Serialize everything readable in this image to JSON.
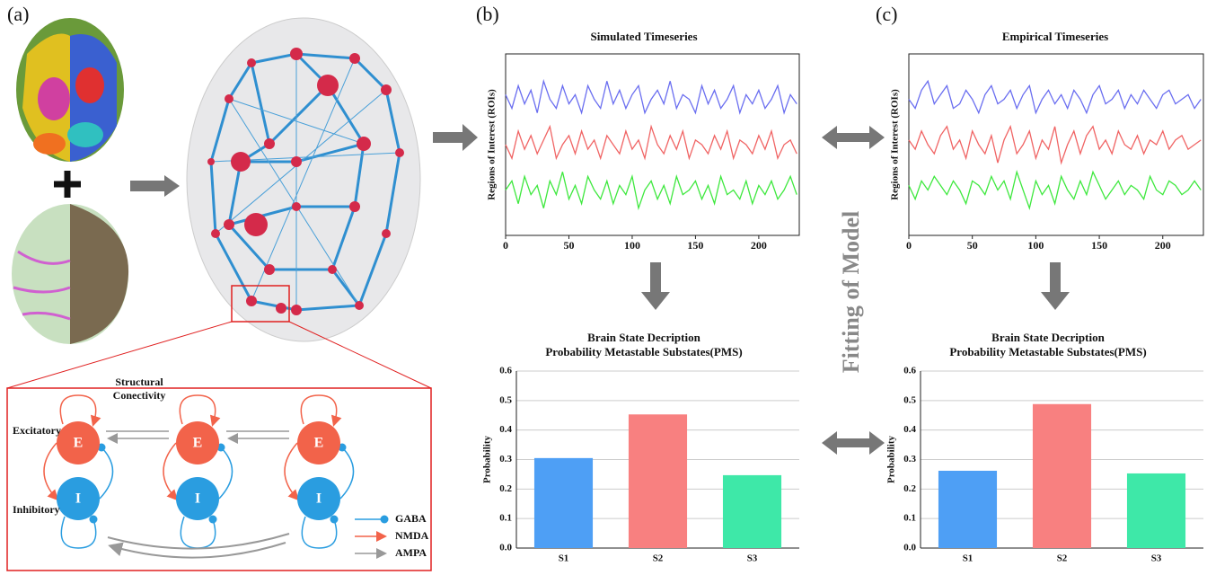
{
  "panel_labels": [
    "(a)",
    "(b)",
    "(c)"
  ],
  "fitting_label": "Fitting of Model",
  "diagram": {
    "structural_label": [
      "Structural",
      "Conectivity"
    ],
    "excitatory": "Excitatory",
    "inhibitory": "Inhibitory",
    "nodes": [
      "E",
      "I",
      "E",
      "I",
      "E",
      "I"
    ],
    "legend": [
      "GABA",
      "NMDA",
      "AMPA"
    ]
  },
  "chart_data": [
    {
      "type": "line",
      "title": "Simulated Timeseries",
      "y_label": "Regions of Interest (ROIs)",
      "x": [
        0,
        5,
        10,
        15,
        20,
        25,
        30,
        35,
        40,
        45,
        50,
        55,
        60,
        65,
        70,
        75,
        80,
        85,
        90,
        95,
        100,
        105,
        110,
        115,
        120,
        125,
        130,
        135,
        140,
        145,
        150,
        155,
        160,
        165,
        170,
        175,
        180,
        185,
        190,
        195,
        200,
        205,
        210,
        215,
        220,
        225,
        230
      ],
      "xlim": [
        0,
        232
      ],
      "xticks": [
        0,
        50,
        100,
        150,
        200
      ],
      "ylim": [
        0,
        4
      ],
      "series": [
        {
          "color": "#6a6ef0",
          "values": [
            3.1,
            2.8,
            3.3,
            2.9,
            3.2,
            2.7,
            3.4,
            3.0,
            2.8,
            3.3,
            2.9,
            3.1,
            2.7,
            3.3,
            3.0,
            2.8,
            3.4,
            2.9,
            3.2,
            2.8,
            3.1,
            3.3,
            2.7,
            3.0,
            3.2,
            2.9,
            3.4,
            2.8,
            3.1,
            3.0,
            2.7,
            3.3,
            2.9,
            3.2,
            2.8,
            3.0,
            3.3,
            2.7,
            3.1,
            2.9,
            3.2,
            2.8,
            3.0,
            3.3,
            2.7,
            3.1,
            2.9
          ]
        },
        {
          "color": "#f06464",
          "values": [
            2.0,
            1.7,
            2.3,
            1.9,
            2.2,
            1.8,
            2.1,
            2.4,
            1.7,
            2.0,
            2.2,
            1.8,
            2.3,
            1.9,
            2.1,
            1.7,
            2.2,
            2.0,
            1.8,
            2.3,
            1.9,
            2.1,
            1.7,
            2.4,
            2.0,
            1.8,
            2.2,
            1.9,
            2.3,
            1.7,
            2.1,
            2.0,
            1.8,
            2.2,
            1.9,
            2.3,
            1.7,
            2.1,
            2.0,
            1.8,
            2.2,
            1.9,
            2.3,
            1.7,
            2.0,
            2.1,
            1.8
          ]
        },
        {
          "color": "#3ee83e",
          "values": [
            1.0,
            1.2,
            0.7,
            1.3,
            0.9,
            1.1,
            0.6,
            1.2,
            0.9,
            1.4,
            0.8,
            1.1,
            0.7,
            1.3,
            1.0,
            0.8,
            1.2,
            0.7,
            1.1,
            0.9,
            1.3,
            0.6,
            1.0,
            1.2,
            0.8,
            1.1,
            0.7,
            1.3,
            0.9,
            1.0,
            1.2,
            0.8,
            1.1,
            0.7,
            1.3,
            0.9,
            1.0,
            0.8,
            1.2,
            0.7,
            1.1,
            0.9,
            1.2,
            0.8,
            1.0,
            1.3,
            0.9
          ]
        }
      ]
    },
    {
      "type": "line",
      "title": "Empirical Timeseries",
      "y_label": "Regions of Interest (ROIs)",
      "x": [
        0,
        5,
        10,
        15,
        20,
        25,
        30,
        35,
        40,
        45,
        50,
        55,
        60,
        65,
        70,
        75,
        80,
        85,
        90,
        95,
        100,
        105,
        110,
        115,
        120,
        125,
        130,
        135,
        140,
        145,
        150,
        155,
        160,
        165,
        170,
        175,
        180,
        185,
        190,
        195,
        200,
        205,
        210,
        215,
        220,
        225,
        230
      ],
      "xlim": [
        0,
        232
      ],
      "xticks": [
        0,
        50,
        100,
        150,
        200
      ],
      "ylim": [
        0,
        4
      ],
      "series": [
        {
          "color": "#6a6ef0",
          "values": [
            3.0,
            2.8,
            3.2,
            3.4,
            2.9,
            3.1,
            3.3,
            2.8,
            2.9,
            3.2,
            3.0,
            2.7,
            3.1,
            3.3,
            2.9,
            3.0,
            3.2,
            2.8,
            3.1,
            3.3,
            2.7,
            3.0,
            3.2,
            2.9,
            3.1,
            2.8,
            3.2,
            3.0,
            2.7,
            3.1,
            3.3,
            2.9,
            3.0,
            3.2,
            2.8,
            3.1,
            2.9,
            3.2,
            3.0,
            2.8,
            3.1,
            3.2,
            2.9,
            3.0,
            3.1,
            2.8,
            3.0
          ]
        },
        {
          "color": "#f06464",
          "values": [
            2.1,
            1.9,
            2.3,
            2.0,
            1.8,
            2.2,
            2.4,
            1.9,
            2.1,
            1.7,
            2.3,
            2.0,
            1.8,
            2.2,
            1.6,
            2.1,
            2.4,
            1.8,
            2.0,
            2.3,
            1.7,
            2.1,
            1.9,
            2.4,
            1.6,
            2.0,
            2.3,
            1.8,
            2.2,
            2.4,
            1.9,
            2.1,
            1.8,
            2.3,
            2.0,
            1.9,
            2.2,
            1.8,
            2.1,
            2.0,
            2.3,
            1.9,
            2.1,
            2.2,
            1.9,
            2.0,
            2.1
          ]
        },
        {
          "color": "#3ee83e",
          "values": [
            1.1,
            0.8,
            1.2,
            1.0,
            1.3,
            1.1,
            0.9,
            1.2,
            1.0,
            0.7,
            1.2,
            1.1,
            0.9,
            1.3,
            1.0,
            1.2,
            0.8,
            1.4,
            1.0,
            0.6,
            1.2,
            0.9,
            1.1,
            0.7,
            1.3,
            1.0,
            0.8,
            1.2,
            0.9,
            1.4,
            1.1,
            0.8,
            1.0,
            1.2,
            0.9,
            1.1,
            1.0,
            0.8,
            1.3,
            1.0,
            0.9,
            1.2,
            1.1,
            0.9,
            1.0,
            1.2,
            1.0
          ]
        }
      ]
    },
    {
      "type": "bar",
      "title": "Brain State Decription",
      "subtitle": "Probability Metastable Substates(PMS)",
      "y_label": "Probability",
      "categories": [
        "S1",
        "S2",
        "S3"
      ],
      "values": [
        0.305,
        0.453,
        0.247
      ],
      "colors": [
        "#4e9ff5",
        "#f88080",
        "#3ee8a8"
      ],
      "ylim": [
        0,
        0.6
      ],
      "yticks": [
        {
          "value": 0,
          "label": "0.0"
        },
        0.1,
        0.2,
        0.3,
        0.4,
        0.5,
        0.6
      ],
      "grid": true
    },
    {
      "type": "bar",
      "title": "Brain State Decription",
      "subtitle": "Probability Metastable Substates(PMS)",
      "y_label": "Probability",
      "categories": [
        "S1",
        "S2",
        "S3"
      ],
      "values": [
        0.262,
        0.488,
        0.253
      ],
      "colors": [
        "#4e9ff5",
        "#f88080",
        "#3ee8a8"
      ],
      "ylim": [
        0,
        0.6
      ],
      "yticks": [
        {
          "value": 0,
          "label": "0.0"
        },
        0.1,
        0.2,
        0.3,
        0.4,
        0.5,
        0.6
      ],
      "grid": true
    }
  ]
}
